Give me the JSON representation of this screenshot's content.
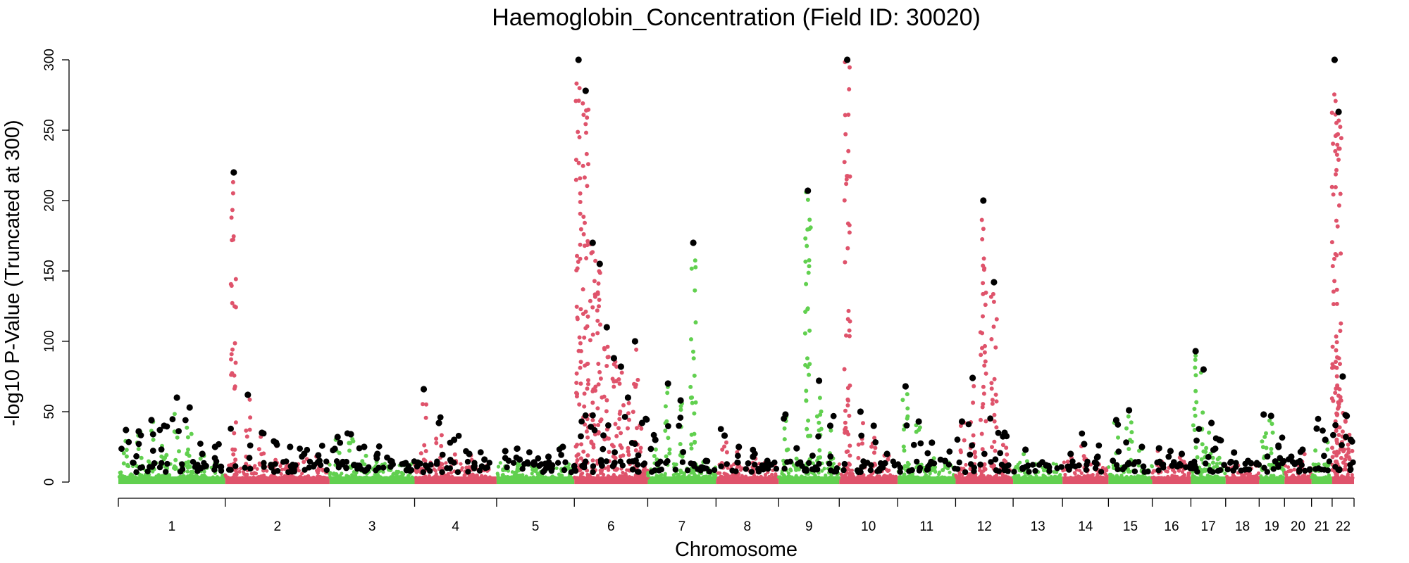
{
  "chart_data": {
    "type": "scatter",
    "subtype": "manhattan",
    "title": "Haemoglobin_Concentration (Field ID: 30020)",
    "xlabel": "Chromosome",
    "ylabel": "-log10 P-Value (Truncated at 300)",
    "ylim": [
      0,
      300
    ],
    "yticks": [
      0,
      50,
      100,
      150,
      200,
      250,
      300
    ],
    "colors": {
      "odd": "#61D04F",
      "even": "#DF536B",
      "lead": "#000000"
    },
    "chromosomes": [
      {
        "label": "1",
        "length": 249,
        "peaks": [
          37,
          36,
          44,
          40,
          60,
          53,
          20,
          25
        ]
      },
      {
        "label": "2",
        "length": 243,
        "peaks": [
          220,
          62,
          35,
          28,
          25,
          20,
          19
        ]
      },
      {
        "label": "3",
        "length": 198,
        "peaks": [
          32,
          34,
          25,
          20,
          15,
          13
        ]
      },
      {
        "label": "4",
        "length": 191,
        "peaks": [
          66,
          42,
          30,
          20,
          16
        ]
      },
      {
        "label": "5",
        "length": 181,
        "peaks": [
          22,
          16,
          14,
          18,
          25
        ]
      },
      {
        "label": "6",
        "length": 171,
        "peaks": [
          300,
          278,
          170,
          155,
          110,
          88,
          82,
          60,
          100,
          42
        ]
      },
      {
        "label": "7",
        "length": 159,
        "peaks": [
          30,
          70,
          58,
          170,
          15
        ]
      },
      {
        "label": "8",
        "length": 146,
        "peaks": [
          33,
          25,
          18,
          15
        ]
      },
      {
        "label": "9",
        "length": 141,
        "peaks": [
          48,
          24,
          207,
          72,
          40
        ]
      },
      {
        "label": "10",
        "length": 136,
        "peaks": [
          300,
          50,
          40,
          20
        ]
      },
      {
        "label": "11",
        "length": 135,
        "peaks": [
          68,
          43,
          28,
          15
        ]
      },
      {
        "label": "12",
        "length": 134,
        "peaks": [
          43,
          74,
          200,
          142,
          35
        ]
      },
      {
        "label": "13",
        "length": 115,
        "peaks": [
          23,
          12
        ]
      },
      {
        "label": "14",
        "length": 107,
        "peaks": [
          20,
          27,
          18
        ]
      },
      {
        "label": "15",
        "length": 102,
        "peaks": [
          44,
          51,
          25
        ]
      },
      {
        "label": "16",
        "length": 90,
        "peaks": [
          24,
          22,
          20
        ]
      },
      {
        "label": "17",
        "length": 81,
        "peaks": [
          93,
          80,
          42,
          30
        ]
      },
      {
        "label": "18",
        "length": 78,
        "peaks": [
          21,
          15
        ]
      },
      {
        "label": "19",
        "length": 59,
        "peaks": [
          48,
          47,
          25
        ]
      },
      {
        "label": "20",
        "length": 63,
        "peaks": [
          18,
          23
        ]
      },
      {
        "label": "21",
        "length": 48,
        "peaks": [
          38,
          30
        ]
      },
      {
        "label": "22",
        "length": 51,
        "peaks": [
          300,
          263,
          75,
          47,
          30
        ]
      }
    ]
  }
}
